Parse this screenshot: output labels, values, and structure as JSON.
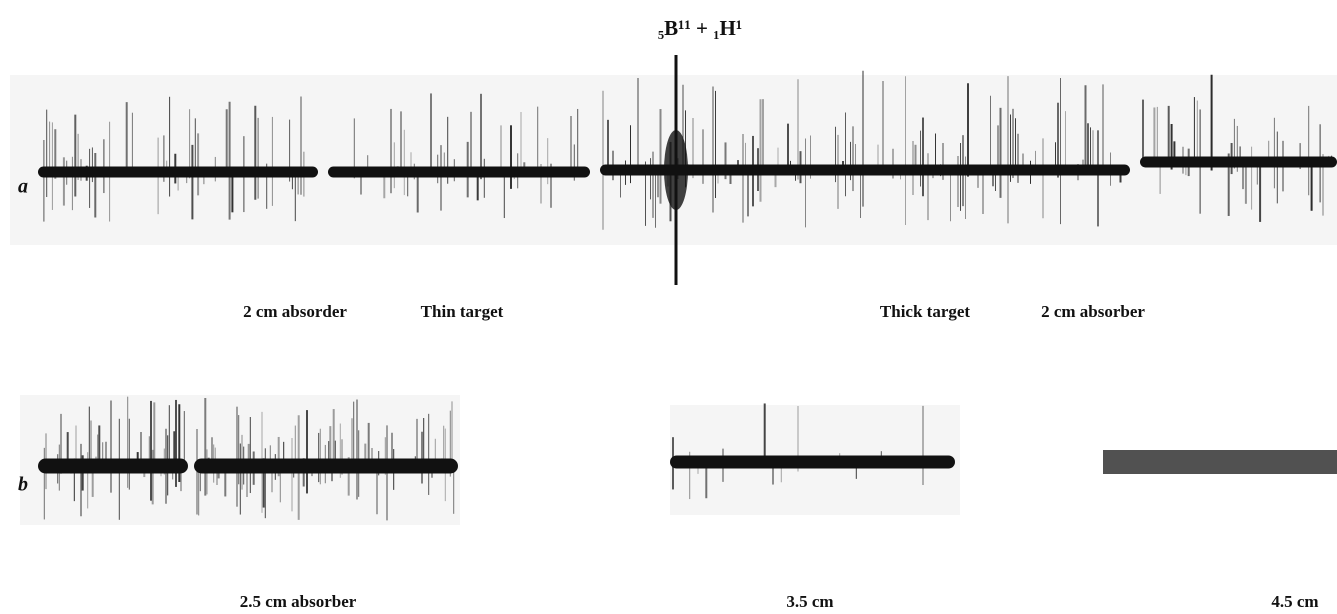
{
  "figure": {
    "title": "₅B¹¹ + ₁H¹",
    "rows": [
      {
        "label": "a",
        "captions": [
          "2 cm absorder",
          "Thin target",
          "Thick target",
          "2 cm absorber"
        ]
      },
      {
        "label": "b",
        "captions": [
          "2.5 cm absorber",
          "3.5 cm",
          "4.5 cm"
        ]
      }
    ]
  }
}
